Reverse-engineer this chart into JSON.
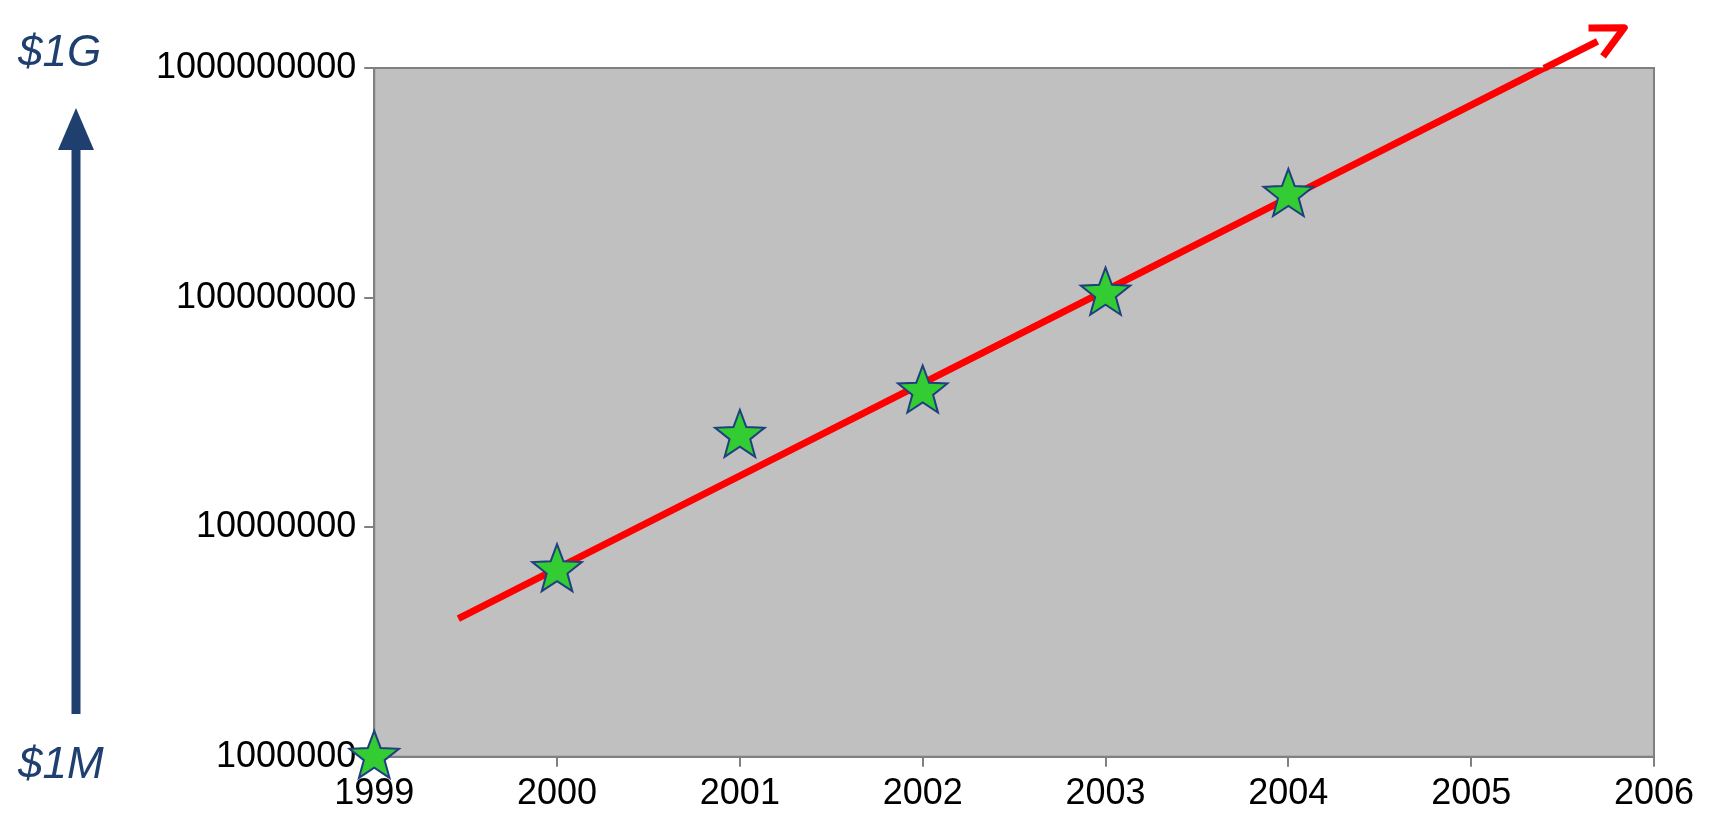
{
  "chart_data": {
    "type": "scatter",
    "log": "y",
    "grid": false,
    "legend": false,
    "xlim": [
      1999,
      2006
    ],
    "xticks": [
      1999,
      2000,
      2001,
      2002,
      2003,
      2004,
      2005,
      2006
    ],
    "ylim": [
      1000000,
      1000000000
    ],
    "yticks": [
      1000000,
      10000000,
      100000000,
      1000000000
    ],
    "annotations": [
      "$1G",
      "$1M"
    ],
    "series": [
      {
        "marker": "star",
        "color": "#33cc33",
        "x": [
          1999,
          2000,
          2001,
          2002,
          2003,
          2004
        ],
        "values": [
          1000000,
          6500000,
          25000000,
          39000000,
          104000000,
          280000000
        ]
      },
      {
        "type": "line",
        "marker": "none",
        "color": "#ff0000",
        "x": [
          1999.46,
          2005.4
        ],
        "values": [
          4000000,
          1000000000
        ]
      }
    ]
  }
}
